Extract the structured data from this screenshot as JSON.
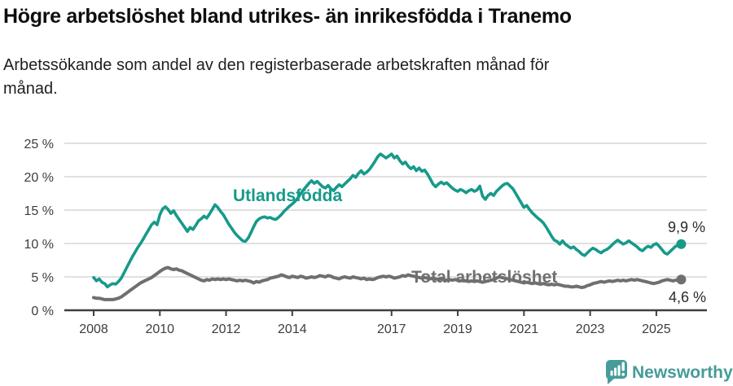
{
  "header": {
    "title": "Högre arbetslöshet bland utrikes- än inrikesfödda i Tranemo",
    "subtitle_line1": "Arbetssökande som andel av den registerbaserade arbetskraften månad för",
    "subtitle_line2": "månad."
  },
  "footer": {
    "brand": "Newsworthy",
    "brand_color": "#459c98"
  },
  "chart_data": {
    "type": "line",
    "title": "Högre arbetslöshet bland utrikes- än inrikesfödda i Tranemo",
    "subtitle": "Arbetssökande som andel av den registerbaserade arbetskraften månad för månad.",
    "x_unit": "monthly, decimal years",
    "x_start_year": 2008,
    "x_step_months": 1,
    "ylim": [
      0,
      25
    ],
    "grid": "horizontal",
    "colors": {
      "gridline": "#e0e0e0",
      "axis": "#3f3f3f",
      "tick_text": "#3d3d3d"
    },
    "y_ticks": [
      {
        "value": 0,
        "label": "0 %"
      },
      {
        "value": 5,
        "label": "5 %"
      },
      {
        "value": 10,
        "label": "10 %"
      },
      {
        "value": 15,
        "label": "15 %"
      },
      {
        "value": 20,
        "label": "20 %"
      },
      {
        "value": 25,
        "label": "25 %"
      }
    ],
    "x_ticks": [
      {
        "value": 2008,
        "label": "2008"
      },
      {
        "value": 2010,
        "label": "2010"
      },
      {
        "value": 2012,
        "label": "2012"
      },
      {
        "value": 2014,
        "label": "2014"
      },
      {
        "value": 2017,
        "label": "2017"
      },
      {
        "value": 2019,
        "label": "2019"
      },
      {
        "value": 2021,
        "label": "2021"
      },
      {
        "value": 2023,
        "label": "2023"
      },
      {
        "value": 2025,
        "label": "2025"
      }
    ],
    "series": [
      {
        "name": "Utlandsfödda",
        "color": "#169a8a",
        "end_label": "9,9 %",
        "last_value": 9.9,
        "values": [
          4.9,
          4.4,
          4.7,
          4.2,
          4.0,
          3.5,
          3.8,
          4.0,
          3.9,
          4.3,
          4.8,
          5.6,
          6.4,
          7.2,
          8.0,
          8.7,
          9.4,
          10.0,
          10.7,
          11.4,
          12.1,
          12.8,
          13.2,
          12.8,
          14.3,
          15.2,
          15.5,
          15.1,
          14.5,
          14.9,
          14.2,
          13.6,
          13.0,
          12.4,
          11.8,
          12.4,
          12.1,
          12.7,
          13.4,
          13.7,
          14.1,
          13.8,
          14.4,
          15.1,
          15.8,
          15.4,
          14.8,
          14.3,
          13.6,
          12.9,
          12.3,
          11.7,
          11.2,
          10.8,
          10.4,
          10.3,
          10.8,
          11.6,
          12.5,
          13.3,
          13.7,
          13.9,
          14.0,
          13.8,
          13.9,
          13.7,
          13.6,
          13.9,
          14.3,
          14.8,
          15.2,
          15.6,
          15.9,
          16.3,
          16.8,
          17.4,
          18.0,
          18.5,
          19.0,
          19.4,
          19.0,
          19.3,
          18.9,
          18.5,
          18.3,
          18.7,
          18.2,
          17.9,
          18.4,
          18.8,
          18.5,
          18.9,
          19.3,
          19.7,
          20.2,
          19.9,
          20.5,
          20.9,
          20.4,
          20.7,
          21.1,
          21.7,
          22.3,
          23.0,
          23.4,
          23.1,
          22.8,
          23.1,
          23.4,
          22.8,
          23.1,
          22.4,
          21.9,
          22.2,
          21.6,
          21.2,
          21.5,
          20.9,
          21.3,
          20.8,
          21.0,
          20.4,
          19.7,
          18.9,
          18.5,
          18.9,
          19.2,
          18.9,
          19.1,
          18.7,
          18.3,
          18.0,
          17.8,
          18.1,
          17.9,
          17.6,
          17.9,
          18.1,
          17.8,
          18.0,
          18.6,
          17.1,
          16.6,
          17.2,
          17.5,
          17.2,
          17.8,
          18.2,
          18.6,
          18.9,
          19.0,
          18.6,
          18.2,
          17.5,
          16.8,
          16.1,
          15.4,
          15.7,
          15.1,
          14.6,
          14.2,
          13.8,
          13.5,
          13.1,
          12.5,
          11.8,
          11.1,
          10.5,
          10.3,
          9.9,
          10.4,
          9.9,
          9.6,
          9.3,
          9.5,
          9.1,
          8.8,
          8.4,
          8.2,
          8.6,
          9.0,
          9.3,
          9.1,
          8.8,
          8.6,
          8.9,
          9.1,
          9.4,
          9.8,
          10.2,
          10.5,
          10.2,
          9.9,
          10.1,
          10.4,
          10.1,
          9.8,
          9.5,
          9.1,
          8.9,
          9.3,
          9.6,
          9.4,
          9.8,
          10.0,
          9.6,
          9.1,
          8.6,
          8.4,
          8.8,
          9.2,
          9.6,
          9.7,
          9.9
        ]
      },
      {
        "name": "Total arbetslöshet",
        "color": "#6f6f6f",
        "end_label": "4,6 %",
        "last_value": 4.6,
        "values": [
          1.9,
          1.8,
          1.8,
          1.7,
          1.6,
          1.6,
          1.6,
          1.6,
          1.7,
          1.8,
          2.0,
          2.3,
          2.6,
          2.9,
          3.2,
          3.5,
          3.8,
          4.1,
          4.3,
          4.5,
          4.7,
          4.9,
          5.2,
          5.5,
          5.8,
          6.1,
          6.3,
          6.4,
          6.2,
          6.1,
          6.2,
          6.0,
          5.9,
          5.7,
          5.5,
          5.3,
          5.1,
          4.9,
          4.7,
          4.5,
          4.4,
          4.6,
          4.5,
          4.7,
          4.6,
          4.7,
          4.6,
          4.7,
          4.6,
          4.7,
          4.6,
          4.5,
          4.4,
          4.5,
          4.4,
          4.5,
          4.4,
          4.3,
          4.1,
          4.3,
          4.2,
          4.4,
          4.5,
          4.6,
          4.8,
          4.9,
          5.0,
          5.1,
          5.3,
          5.2,
          5.0,
          4.9,
          5.1,
          5.0,
          4.9,
          5.1,
          5.0,
          4.8,
          4.9,
          5.0,
          4.9,
          5.0,
          5.2,
          5.1,
          5.0,
          5.2,
          5.1,
          4.9,
          4.8,
          4.7,
          4.9,
          5.0,
          4.9,
          4.8,
          5.0,
          4.9,
          4.8,
          4.7,
          4.8,
          4.6,
          4.7,
          4.6,
          4.7,
          4.9,
          5.0,
          5.1,
          5.0,
          5.1,
          5.0,
          4.8,
          4.9,
          5.0,
          5.2,
          5.1,
          5.3,
          5.2,
          5.1,
          5.0,
          4.9,
          4.8,
          4.9,
          4.8,
          4.7,
          4.8,
          4.7,
          4.6,
          4.7,
          4.6,
          4.5,
          4.6,
          4.5,
          4.6,
          4.5,
          4.4,
          4.5,
          4.4,
          4.3,
          4.4,
          4.3,
          4.4,
          4.3,
          4.2,
          4.3,
          4.4,
          4.5,
          4.6,
          4.8,
          5.0,
          4.9,
          4.8,
          4.7,
          4.6,
          4.5,
          4.4,
          4.3,
          4.2,
          4.1,
          4.2,
          4.1,
          4.0,
          4.1,
          4.0,
          3.9,
          4.0,
          3.9,
          3.8,
          3.9,
          3.8,
          3.9,
          3.8,
          3.7,
          3.6,
          3.6,
          3.5,
          3.5,
          3.6,
          3.5,
          3.4,
          3.5,
          3.7,
          3.8,
          4.0,
          4.1,
          4.2,
          4.3,
          4.2,
          4.3,
          4.4,
          4.3,
          4.4,
          4.5,
          4.4,
          4.5,
          4.4,
          4.5,
          4.6,
          4.5,
          4.6,
          4.5,
          4.4,
          4.3,
          4.2,
          4.1,
          4.0,
          4.1,
          4.2,
          4.4,
          4.5,
          4.6,
          4.5,
          4.4,
          4.5,
          4.5,
          4.6
        ]
      }
    ]
  }
}
